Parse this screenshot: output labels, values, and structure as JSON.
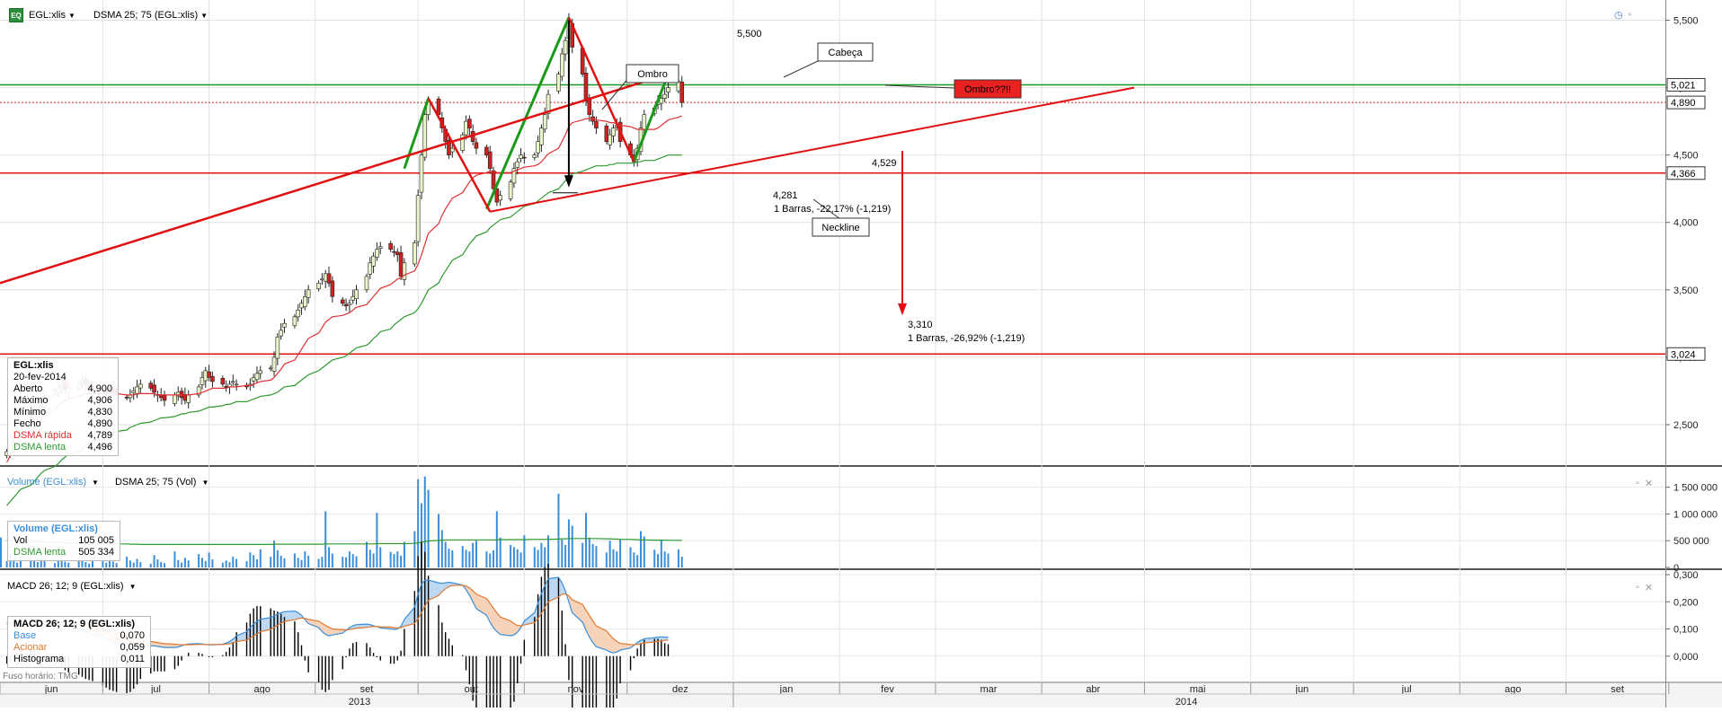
{
  "header": {
    "symbol": "EGL:xlis",
    "indicator": "DSMA 25; 75 (EGL:xlis)",
    "logo_text": "EQ",
    "volume_label": "Volume (EGL:xlis)",
    "volume_indicator": "DSMA 25; 75 (Vol)",
    "macd_label": "MACD 26; 12; 9 (EGL:xlis)"
  },
  "colors": {
    "candle_up": "#e8f5c8",
    "candle_down": "#cc2222",
    "dsma_fast": "#e03030",
    "dsma_slow": "#2f9a2f",
    "volume": "#3a8fd8",
    "macd_base": "#3a8fd8",
    "macd_signal": "#e07a30",
    "histogram": "#000000",
    "annotation_green": "#1a9a1a",
    "annotation_red": "#e01010"
  },
  "info_price": {
    "title": "EGL:xlis",
    "date": "20-fev-2014",
    "rows": [
      {
        "label": "Aberto",
        "value": "4,900"
      },
      {
        "label": "Máximo",
        "value": "4,906"
      },
      {
        "label": "Mínimo",
        "value": "4,830"
      },
      {
        "label": "Fecho",
        "value": "4,890"
      },
      {
        "label": "DSMA rápida",
        "value": "4,789"
      },
      {
        "label": "DSMA lenta",
        "value": "4,496"
      }
    ]
  },
  "info_volume": {
    "title": "Volume (EGL:xlis)",
    "rows": [
      {
        "label": "Vol",
        "value": "105 005"
      },
      {
        "label": "DSMA lenta",
        "value": "505 334"
      }
    ]
  },
  "info_macd": {
    "title": "MACD 26; 12; 9 (EGL:xlis)",
    "rows": [
      {
        "label": "Base",
        "value": "0,070"
      },
      {
        "label": "Acionar",
        "value": "0,059"
      },
      {
        "label": "Histograma",
        "value": "0,011"
      }
    ]
  },
  "footer_note": "Fuso horário: TMG",
  "chart_data": {
    "type": "candlestick",
    "price_axis": {
      "ticks": [
        2.5,
        3.0,
        3.5,
        4.0,
        4.5,
        5.0,
        5.5
      ],
      "tick_labels": [
        "2,500",
        "3,000",
        "3,500",
        "4,000",
        "4,500",
        "5,000",
        "5,500"
      ],
      "range": [
        2.2,
        5.65
      ]
    },
    "volume_axis": {
      "ticks": [
        0,
        500000,
        1000000,
        1500000
      ],
      "tick_labels": [
        "0",
        "500 000",
        "1 000 000",
        "1 500 000"
      ],
      "range": [
        0,
        1780000
      ]
    },
    "macd_axis": {
      "ticks": [
        0.0,
        0.1,
        0.2,
        0.3
      ],
      "tick_labels": [
        "0,000",
        "0,100",
        "0,200",
        "0,300"
      ],
      "range": [
        -0.09,
        0.31
      ]
    },
    "months": [
      "jun",
      "jul",
      "ago",
      "set",
      "out",
      "nov",
      "dez",
      "jan",
      "fev",
      "mar",
      "abr",
      "mai",
      "jun",
      "jul",
      "ago",
      "set"
    ],
    "years": [
      "2013",
      "2014"
    ],
    "price_levels": [
      {
        "value": 5.021,
        "label": "5,021",
        "color": "#1a9a1a"
      },
      {
        "value": 4.89,
        "label": "4,890",
        "color": "#cc2222",
        "dotted": true
      },
      {
        "value": 4.366,
        "label": "4,366",
        "color": "#e01010"
      },
      {
        "value": 3.024,
        "label": "3,024",
        "color": "#e01010"
      }
    ],
    "annotations": {
      "ombro": "Ombro",
      "cabeca": "Cabeça",
      "ombro2": "Ombro??!!",
      "neckline": "Neckline",
      "peak_label": "5,500",
      "low_label": "4,281",
      "measure1": "1 Barras, -22,17% (-1,219)",
      "point_label": "4,529",
      "target_label": "3,310",
      "measure2": "1 Barras, -26,92% (-1,219)"
    },
    "price_series": {
      "start": "2013-06-03",
      "closes": [
        2.3,
        2.4,
        2.42,
        2.45,
        2.5,
        2.55,
        2.6,
        2.65,
        2.62,
        2.7,
        2.75,
        2.78,
        2.8,
        2.76,
        2.78,
        2.8,
        2.82,
        2.8,
        2.77,
        2.75,
        2.76,
        2.74,
        2.75,
        2.74,
        2.72,
        2.7,
        2.72,
        2.75,
        2.78,
        2.8,
        2.77,
        2.74,
        2.72,
        2.7,
        2.68,
        2.72,
        2.74,
        2.7,
        2.68,
        2.72,
        2.78,
        2.85,
        2.9,
        2.85,
        2.82,
        2.8,
        2.78,
        2.8,
        2.82,
        2.8,
        2.78,
        2.8,
        2.85,
        2.88,
        2.9,
        2.92,
        3.0,
        3.15,
        3.2,
        3.25,
        3.3,
        3.35,
        3.4,
        3.45,
        3.5,
        3.55,
        3.58,
        3.62,
        3.55,
        3.45,
        3.4,
        3.38,
        3.4,
        3.45,
        3.5,
        3.6,
        3.7,
        3.75,
        3.8,
        3.82,
        3.8,
        3.78,
        3.76,
        3.6,
        3.7,
        3.85,
        4.2,
        4.5,
        4.8,
        4.9,
        4.8,
        4.7,
        4.6,
        4.5,
        4.55,
        4.65,
        4.75,
        4.7,
        4.6,
        4.55,
        4.5,
        4.4,
        4.25,
        4.15,
        4.2,
        4.3,
        4.4,
        4.45,
        4.5,
        4.48,
        4.5,
        4.6,
        4.7,
        4.8,
        4.95,
        5.1,
        5.25,
        5.35,
        5.5,
        5.3,
        5.1,
        4.9,
        4.8,
        4.75,
        4.7,
        4.6,
        4.65,
        4.7,
        4.72,
        4.6,
        4.5,
        4.45,
        4.55,
        4.7,
        4.8,
        4.85,
        4.9,
        4.92,
        4.95,
        5.0,
        5.05,
        4.89
      ],
      "dsma_fast": [
        2.22,
        2.27,
        2.31,
        2.35,
        2.39,
        2.43,
        2.47,
        2.51,
        2.54,
        2.58,
        2.61,
        2.64,
        2.66,
        2.68,
        2.69,
        2.71,
        2.72,
        2.73,
        2.73,
        2.73,
        2.73,
        2.73,
        2.73,
        2.73,
        2.73,
        2.72,
        2.72,
        2.72,
        2.73,
        2.73,
        2.73,
        2.73,
        2.72,
        2.72,
        2.72,
        2.72,
        2.72,
        2.72,
        2.72,
        2.72,
        2.73,
        2.74,
        2.75,
        2.76,
        2.77,
        2.77,
        2.77,
        2.78,
        2.78,
        2.78,
        2.79,
        2.79,
        2.8,
        2.81,
        2.82,
        2.83,
        2.85,
        2.88,
        2.91,
        2.95,
        2.98,
        3.02,
        3.06,
        3.1,
        3.14,
        3.18,
        3.22,
        3.26,
        3.28,
        3.3,
        3.31,
        3.32,
        3.33,
        3.35,
        3.37,
        3.39,
        3.42,
        3.45,
        3.48,
        3.51,
        3.54,
        3.56,
        3.58,
        3.59,
        3.61,
        3.64,
        3.69,
        3.76,
        3.84,
        3.92,
        3.99,
        4.05,
        4.1,
        4.14,
        4.18,
        4.22,
        4.26,
        4.3,
        4.33,
        4.35,
        4.37,
        4.38,
        4.38,
        4.37,
        4.37,
        4.37,
        4.38,
        4.39,
        4.4,
        4.41,
        4.42,
        4.43,
        4.45,
        4.48,
        4.51,
        4.55,
        4.6,
        4.65,
        4.71,
        4.74,
        4.76,
        4.77,
        4.77,
        4.77,
        4.76,
        4.75,
        4.74,
        4.74,
        4.73,
        4.72,
        4.71,
        4.7,
        4.69,
        4.69,
        4.69,
        4.69,
        4.7,
        4.72,
        4.74,
        4.76,
        4.78,
        4.79
      ],
      "dsma_slow": [
        1.9,
        1.93,
        1.96,
        1.99,
        2.02,
        2.05,
        2.08,
        2.11,
        2.14,
        2.16,
        2.19,
        2.21,
        2.24,
        2.26,
        2.28,
        2.3,
        2.32,
        2.34,
        2.36,
        2.38,
        2.39,
        2.41,
        2.42,
        2.44,
        2.45,
        2.46,
        2.48,
        2.49,
        2.5,
        2.51,
        2.52,
        2.53,
        2.54,
        2.55,
        2.55,
        2.56,
        2.57,
        2.58,
        2.58,
        2.59,
        2.6,
        2.61,
        2.62,
        2.63,
        2.63,
        2.64,
        2.65,
        2.65,
        2.66,
        2.67,
        2.67,
        2.68,
        2.69,
        2.7,
        2.71,
        2.72,
        2.73,
        2.74,
        2.76,
        2.78,
        2.79,
        2.81,
        2.83,
        2.85,
        2.87,
        2.9,
        2.92,
        2.94,
        2.96,
        2.98,
        3.0,
        3.01,
        3.03,
        3.05,
        3.07,
        3.09,
        3.11,
        3.14,
        3.16,
        3.19,
        3.21,
        3.24,
        3.26,
        3.28,
        3.3,
        3.33,
        3.36,
        3.4,
        3.45,
        3.5,
        3.55,
        3.6,
        3.64,
        3.68,
        3.72,
        3.76,
        3.8,
        3.84,
        3.87,
        3.9,
        3.93,
        3.96,
        3.98,
        4.0,
        4.02,
        4.04,
        4.06,
        4.08,
        4.1,
        4.12,
        4.14,
        4.16,
        4.18,
        4.2,
        4.22,
        4.25,
        4.28,
        4.31,
        4.34,
        4.36,
        4.38,
        4.39,
        4.4,
        4.41,
        4.42,
        4.42,
        4.43,
        4.43,
        4.44,
        4.44,
        4.44,
        4.44,
        4.45,
        4.45,
        4.46,
        4.46,
        4.47,
        4.48,
        4.49,
        4.5,
        4.5,
        4.5,
        4.5,
        4.5
      ]
    },
    "volume_series": [
      120000,
      260000,
      180000,
      90000,
      210000,
      350000,
      150000,
      100000,
      240000,
      130000,
      80000,
      170000,
      260000,
      110000,
      90000,
      200000,
      140000,
      100000,
      70000,
      180000,
      120000,
      90000,
      240000,
      110000,
      80000,
      200000,
      130000,
      90000,
      160000,
      100000,
      70000,
      230000,
      150000,
      100000,
      80000,
      300000,
      140000,
      90000,
      180000,
      130000,
      250000,
      180000,
      120000,
      280000,
      150000,
      90000,
      130000,
      100000,
      200000,
      160000,
      120000,
      280000,
      230000,
      150000,
      340000,
      200000,
      500000,
      320000,
      220000,
      170000,
      260000,
      180000,
      140000,
      300000,
      220000,
      160000,
      200000,
      1050000,
      380000,
      260000,
      200000,
      190000,
      300000,
      250000,
      210000,
      480000,
      330000,
      260000,
      1020000,
      380000,
      290000,
      250000,
      300000,
      220000,
      480000,
      680000,
      1650000,
      1200000,
      1700000,
      1450000,
      1000000,
      700000,
      480000,
      350000,
      320000,
      400000,
      330000,
      300000,
      460000,
      500000,
      300000,
      260000,
      320000,
      1050000,
      560000,
      420000,
      380000,
      340000,
      280000,
      600000,
      380000,
      330000,
      460000,
      380000,
      600000,
      1380000,
      520000,
      420000,
      900000,
      780000,
      460000,
      1020000,
      560000,
      440000,
      400000,
      280000,
      500000,
      340000,
      300000,
      520000,
      380000,
      280000,
      230000,
      680000,
      580000,
      330000,
      250000,
      520000,
      300000,
      260000,
      340000,
      200000,
      560000,
      105005
    ],
    "volume_dsma": [
      500000,
      500000,
      495000,
      490000,
      490000,
      485000,
      485000,
      480000,
      480000,
      475000,
      470000,
      470000,
      465000,
      465000,
      460000,
      460000,
      455000,
      455000,
      450000,
      450000,
      450000,
      445000,
      445000,
      440000,
      440000,
      440000,
      435000,
      435000,
      435000,
      430000,
      430000,
      430000,
      430000,
      430000,
      430000,
      430000,
      430000,
      430000,
      430000,
      430000,
      430000,
      430000,
      430000,
      430000,
      430000,
      430000,
      430000,
      430000,
      430000,
      430000,
      430000,
      430000,
      430000,
      430000,
      430000,
      430000,
      435000,
      435000,
      435000,
      435000,
      435000,
      435000,
      435000,
      435000,
      435000,
      435000,
      435000,
      440000,
      440000,
      440000,
      440000,
      440000,
      440000,
      440000,
      440000,
      440000,
      440000,
      440000,
      445000,
      445000,
      445000,
      445000,
      445000,
      445000,
      445000,
      450000,
      460000,
      470000,
      485000,
      495000,
      505000,
      510000,
      515000,
      515000,
      515000,
      515000,
      515000,
      515000,
      515000,
      515000,
      515000,
      515000,
      515000,
      515000,
      520000,
      520000,
      520000,
      520000,
      520000,
      520000,
      525000,
      525000,
      525000,
      525000,
      525000,
      530000,
      535000,
      535000,
      540000,
      540000,
      540000,
      540000,
      540000,
      540000,
      540000,
      535000,
      535000,
      530000,
      530000,
      525000,
      525000,
      520000,
      520000,
      515000,
      515000,
      510000,
      510000,
      510000,
      508000,
      508000,
      507000,
      506000,
      505500,
      505334
    ],
    "macd_series": {
      "base": [
        0.118,
        0.12,
        0.125,
        0.13,
        0.135,
        0.135,
        0.135,
        0.133,
        0.13,
        0.128,
        0.125,
        0.12,
        0.115,
        0.11,
        0.105,
        0.1,
        0.095,
        0.09,
        0.085,
        0.08,
        0.072,
        0.065,
        0.058,
        0.052,
        0.046,
        0.04,
        0.036,
        0.034,
        0.034,
        0.036,
        0.038,
        0.038,
        0.036,
        0.034,
        0.032,
        0.032,
        0.034,
        0.038,
        0.042,
        0.045,
        0.046,
        0.045,
        0.043,
        0.042,
        0.042,
        0.044,
        0.048,
        0.054,
        0.062,
        0.075,
        0.09,
        0.105,
        0.118,
        0.128,
        0.136,
        0.142,
        0.148,
        0.155,
        0.16,
        0.164,
        0.166,
        0.16,
        0.15,
        0.135,
        0.12,
        0.105,
        0.09,
        0.08,
        0.075,
        0.078,
        0.085,
        0.095,
        0.105,
        0.112,
        0.116,
        0.118,
        0.116,
        0.112,
        0.108,
        0.104,
        0.1,
        0.098,
        0.1,
        0.11,
        0.135,
        0.18,
        0.23,
        0.265,
        0.28,
        0.28,
        0.27,
        0.268,
        0.27,
        0.272,
        0.27,
        0.262,
        0.245,
        0.225,
        0.2,
        0.175,
        0.15,
        0.125,
        0.105,
        0.09,
        0.08,
        0.075,
        0.078,
        0.088,
        0.105,
        0.13,
        0.16,
        0.195,
        0.23,
        0.26,
        0.285,
        0.29,
        0.27,
        0.24,
        0.2,
        0.16,
        0.125,
        0.095,
        0.07,
        0.05,
        0.035,
        0.022,
        0.015,
        0.012,
        0.015,
        0.022,
        0.03,
        0.04,
        0.05,
        0.058,
        0.064,
        0.068,
        0.07,
        0.071,
        0.07,
        0.07
      ],
      "signal": [
        0.125,
        0.125,
        0.126,
        0.127,
        0.128,
        0.129,
        0.13,
        0.13,
        0.13,
        0.129,
        0.128,
        0.127,
        0.125,
        0.123,
        0.12,
        0.117,
        0.114,
        0.111,
        0.107,
        0.103,
        0.099,
        0.094,
        0.089,
        0.084,
        0.079,
        0.074,
        0.069,
        0.064,
        0.06,
        0.057,
        0.054,
        0.052,
        0.05,
        0.048,
        0.046,
        0.044,
        0.043,
        0.042,
        0.042,
        0.042,
        0.043,
        0.043,
        0.043,
        0.043,
        0.043,
        0.043,
        0.044,
        0.046,
        0.049,
        0.053,
        0.059,
        0.066,
        0.074,
        0.082,
        0.09,
        0.098,
        0.106,
        0.114,
        0.121,
        0.128,
        0.134,
        0.138,
        0.14,
        0.139,
        0.135,
        0.129,
        0.121,
        0.113,
        0.106,
        0.1,
        0.097,
        0.096,
        0.098,
        0.1,
        0.103,
        0.106,
        0.108,
        0.109,
        0.109,
        0.108,
        0.107,
        0.105,
        0.104,
        0.105,
        0.11,
        0.12,
        0.138,
        0.16,
        0.184,
        0.206,
        0.223,
        0.237,
        0.248,
        0.256,
        0.26,
        0.261,
        0.258,
        0.251,
        0.241,
        0.228,
        0.212,
        0.195,
        0.177,
        0.16,
        0.144,
        0.13,
        0.12,
        0.113,
        0.112,
        0.115,
        0.124,
        0.138,
        0.157,
        0.178,
        0.2,
        0.218,
        0.228,
        0.229,
        0.222,
        0.208,
        0.19,
        0.17,
        0.15,
        0.13,
        0.111,
        0.093,
        0.077,
        0.064,
        0.054,
        0.047,
        0.043,
        0.042,
        0.043,
        0.046,
        0.049,
        0.052,
        0.054,
        0.056,
        0.058,
        0.059
      ]
    }
  }
}
